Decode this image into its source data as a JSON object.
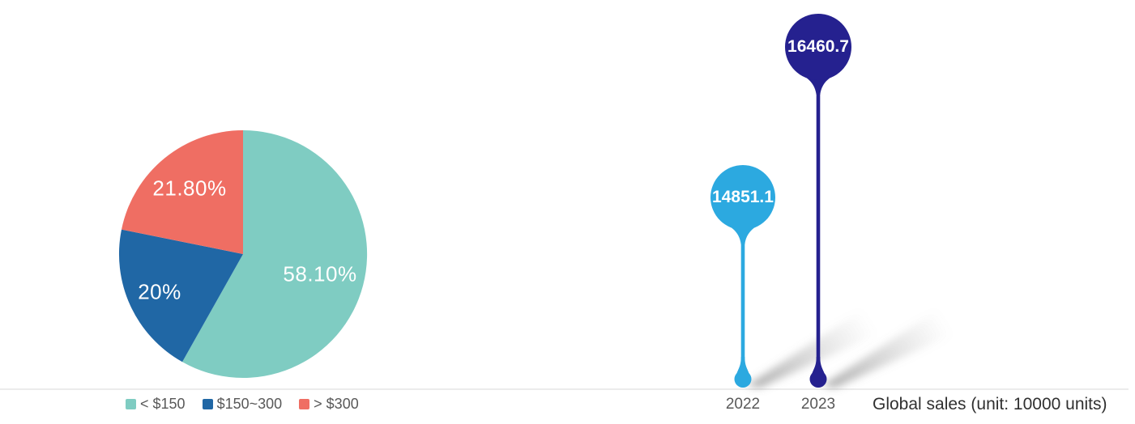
{
  "page": {
    "background": "#ffffff"
  },
  "colors": {
    "pie_teal": "#7FCCC2",
    "pie_blue": "#2067A5",
    "pie_red": "#EF6E63",
    "balloon_2022": "#2CA9E0",
    "balloon_2023": "#25218F",
    "axis_line": "#D9D9D9",
    "tick_text": "#595959",
    "title_text": "#303030"
  },
  "chart_data": [
    {
      "type": "pie",
      "categories": [
        "< $150",
        "$150~300",
        "> $300"
      ],
      "values": [
        58.1,
        20,
        21.8
      ],
      "value_labels": [
        "58.10%",
        "20%",
        "21.80%"
      ],
      "colors": [
        "#7FCCC2",
        "#2067A5",
        "#EF6E63"
      ],
      "start_angle": "top",
      "direction": "clockwise",
      "legend_position": "bottom",
      "label_color": "#ffffff"
    },
    {
      "type": "bar",
      "style": "balloon-lollipop",
      "categories": [
        "2022",
        "2023"
      ],
      "values": [
        14851.1,
        16460.7
      ],
      "value_labels": [
        "14851.1",
        "16460.7"
      ],
      "colors": [
        "#2CA9E0",
        "#25218F"
      ],
      "xlabel": "Global sales (unit: 10000 units)",
      "baseline_color": "#D9D9D9",
      "value_label_color": "#ffffff"
    }
  ]
}
